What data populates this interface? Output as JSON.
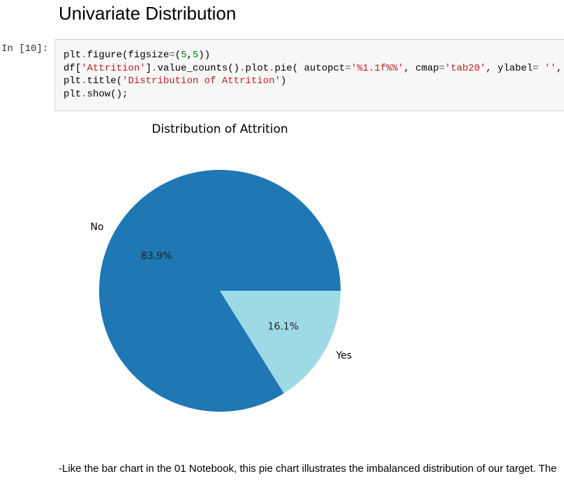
{
  "notebook": {
    "heading": "Univariate Distribution",
    "cell": {
      "prompt": "In [10]:",
      "code_lines": [
        "plt.figure(figsize=(5,5))",
        "df['Attrition'].value_counts().plot.pie( autopct='%1.1f%%', cmap='tab20', ylabel='',",
        "plt.title('Distribution of Attrition')",
        "plt.show();"
      ]
    },
    "paragraph": "-Like the bar chart in the 01 Notebook, this pie chart illustrates the imbalanced distribution of our target. The",
    "paragraph_line2": ""
  },
  "chart_data": {
    "type": "pie",
    "title": "Distribution of Attrition",
    "categories": [
      "No",
      "Yes"
    ],
    "values": [
      83.9,
      16.1
    ],
    "pct_labels": [
      "83.9%",
      "16.1%"
    ],
    "colors": [
      "#1f77b4",
      "#9edae5"
    ],
    "legend": "none"
  }
}
